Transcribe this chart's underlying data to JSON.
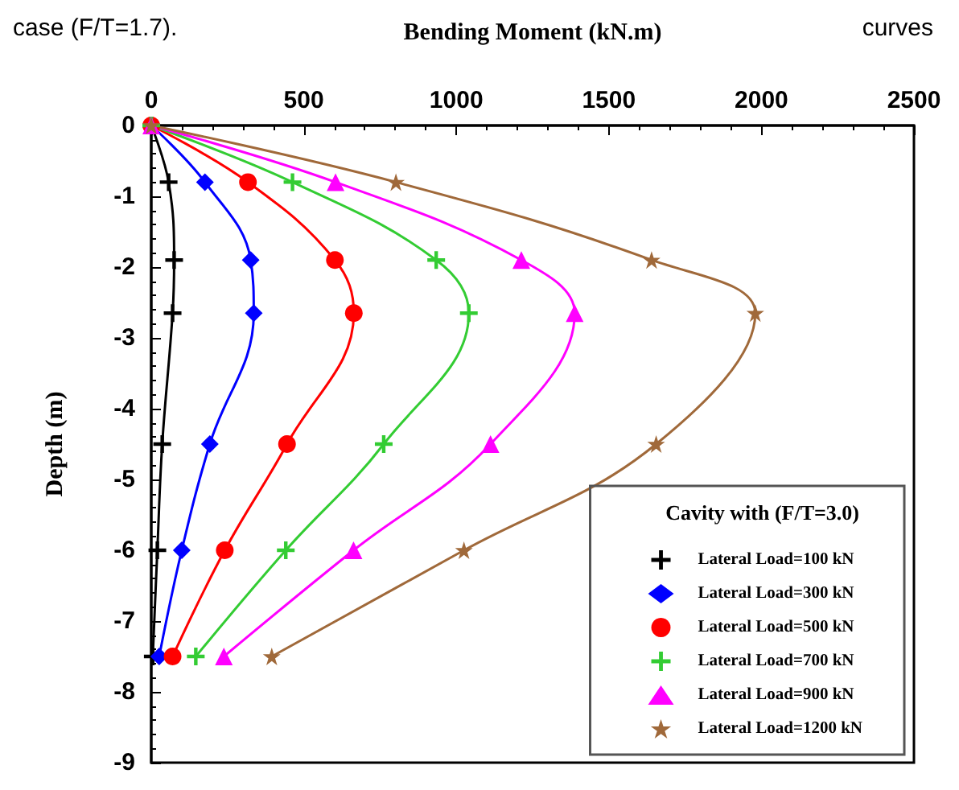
{
  "chart_data": {
    "type": "line",
    "xlabel": "Bending Moment (kN.m)",
    "ylabel": "Depth (m)",
    "legend_title": "Cavity with (F/T=3.0)",
    "legend": "bottom right",
    "grid": false,
    "annotations": [
      "case (F/T=1.7).",
      "curves"
    ],
    "xlim": [
      0,
      2500
    ],
    "xticks": [
      0,
      500,
      1000,
      1500,
      2000,
      2500
    ],
    "ylim": [
      -9,
      0
    ],
    "yticks": [
      -9,
      -8,
      -7,
      -6,
      -5,
      -4,
      -3,
      -2,
      -1,
      0
    ],
    "series": [
      {
        "name": "Lateral Load=100 kN",
        "color": "#000000",
        "marker": "cross",
        "x": [
          0,
          57,
          75,
          70,
          36,
          20,
          5
        ],
        "values": [
          0,
          -0.8,
          -1.9,
          -2.65,
          -4.5,
          -6.0,
          -7.5
        ]
      },
      {
        "name": "Lateral Load=300 kN",
        "color": "#0000ff",
        "marker": "diamond",
        "x": [
          0,
          176,
          326,
          336,
          192,
          100,
          26
        ],
        "values": [
          0,
          -0.8,
          -1.9,
          -2.65,
          -4.5,
          -6.0,
          -7.5
        ]
      },
      {
        "name": "Lateral Load=500 kN",
        "color": "#ff0000",
        "marker": "circle",
        "x": [
          0,
          317,
          602,
          664,
          445,
          241,
          70
        ],
        "values": [
          0,
          -0.8,
          -1.9,
          -2.65,
          -4.5,
          -6.0,
          -7.5
        ]
      },
      {
        "name": "Lateral Load=700 kN",
        "color": "#33cc33",
        "marker": "cross",
        "x": [
          0,
          463,
          934,
          1041,
          762,
          441,
          146
        ],
        "values": [
          0,
          -0.8,
          -1.9,
          -2.65,
          -4.5,
          -6.0,
          -7.5
        ]
      },
      {
        "name": "Lateral Load=900 kN",
        "color": "#ff00ff",
        "marker": "triangle",
        "x": [
          0,
          604,
          1213,
          1388,
          1112,
          663,
          238
        ],
        "values": [
          0,
          -0.8,
          -1.9,
          -2.65,
          -4.5,
          -6.0,
          -7.5
        ]
      },
      {
        "name": "Lateral Load=1200 kN",
        "color": "#a0693a",
        "marker": "star",
        "x": [
          0,
          802,
          1640,
          1980,
          1655,
          1025,
          395
        ],
        "values": [
          0,
          -0.8,
          -1.9,
          -2.65,
          -4.5,
          -6.0,
          -7.5
        ]
      }
    ]
  }
}
